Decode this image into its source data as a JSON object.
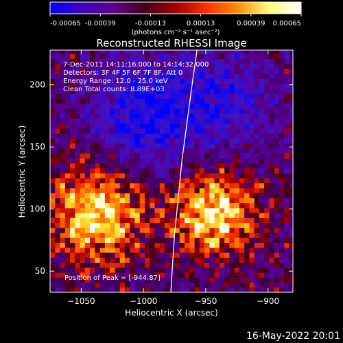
{
  "chart_data": {
    "type": "heatmap",
    "title": "Reconstructed RHESSI Image",
    "xlabel": "Heliocentric X (arcsec)",
    "ylabel": "Heliocentric Y (arcsec)",
    "xlim": [
      -1075,
      -880
    ],
    "ylim": [
      33,
      228
    ],
    "xticks": [
      -1050,
      -1000,
      -950,
      -900
    ],
    "yticks": [
      50,
      100,
      150,
      200
    ],
    "colorbar": {
      "range": [
        -0.00065,
        0.00065
      ],
      "ticks": [
        "-0.00065",
        "-0.00039",
        "-0.00013",
        "0.00013",
        "0.00039",
        "0.00065"
      ],
      "units_label": "(photons cm⁻² s⁻¹ asec⁻²)",
      "colors": [
        "#0000ff",
        "#4000c0",
        "#600090",
        "#400020",
        "#a00000",
        "#ff3000",
        "#ff9000",
        "#ffff80",
        "#ffffff"
      ]
    },
    "info_lines": [
      " 7-Dec-2011 14:11:16.000 to 14:14:32.000",
      "Detectors: 3F 4F 5F 6F 7F 8F, Att 0",
      "Energy Range: 12.0 - 25.0 keV",
      "Clean    Total counts: 8.89E+03"
    ],
    "peak_label": "Position of Peak = [-944,87]",
    "peak_position": [
      -944,
      87
    ],
    "limb": [
      [
        -957,
        228
      ],
      [
        -961,
        200
      ],
      [
        -965,
        170
      ],
      [
        -969,
        140
      ],
      [
        -972,
        110
      ],
      [
        -975,
        80
      ],
      [
        -977,
        50
      ],
      [
        -978,
        33
      ]
    ],
    "regions": [
      {
        "x": -1040,
        "y": 95,
        "intensity": 1.0,
        "radius": 38
      },
      {
        "x": -945,
        "y": 95,
        "intensity": 1.0,
        "radius": 34
      },
      {
        "x": -1000,
        "y": 175,
        "intensity": -0.8,
        "radius": 45
      },
      {
        "x": -935,
        "y": 185,
        "intensity": -0.55,
        "radius": 40
      }
    ]
  },
  "footer": {
    "date": "16-May-2022 20:01"
  }
}
